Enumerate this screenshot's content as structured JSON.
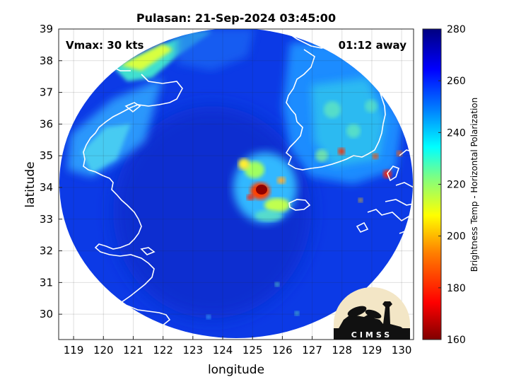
{
  "chart_data": {
    "type": "heatmap",
    "title": "Pulasan: 21-Sep-2024 03:45:00",
    "xlabel": "longitude",
    "ylabel": "latitude",
    "xlim": [
      118.5,
      130.4
    ],
    "ylim": [
      29.2,
      39.0
    ],
    "x_ticks": [
      119,
      120,
      121,
      122,
      123,
      124,
      125,
      126,
      127,
      128,
      129,
      130
    ],
    "y_ticks": [
      30,
      31,
      32,
      33,
      34,
      35,
      36,
      37,
      38,
      39
    ],
    "grid": true,
    "annotations": {
      "vmax": "Vmax: 30 kts",
      "time_away": "01:12 away"
    },
    "colorbar": {
      "label": "Brightness Temp - Horizontal Polarization",
      "ticks": [
        160,
        180,
        200,
        220,
        240,
        260,
        280
      ],
      "range": [
        160,
        280
      ],
      "colors": [
        "#800000",
        "#ff0000",
        "#ff8000",
        "#ffff00",
        "#80ff80",
        "#00ffff",
        "#0080ff",
        "#0000ff",
        "#000080"
      ]
    },
    "swath": {
      "center_lon": 124.35,
      "center_lat": 34.2,
      "background_value": 262
    },
    "features": [
      {
        "name": "storm-core",
        "lon": 125.3,
        "lat": 33.8,
        "value": 168
      },
      {
        "name": "convective-ring",
        "lon": 125.3,
        "lat": 33.9,
        "value": 215
      },
      {
        "name": "yellow-sea-coast",
        "lon": 120.5,
        "lat": 35.0,
        "value": 232
      },
      {
        "name": "northwest-edge",
        "lon": 121.3,
        "lat": 38.2,
        "value": 205
      },
      {
        "name": "korea-land",
        "lon": 127.8,
        "lat": 35.8,
        "value": 238
      },
      {
        "name": "japan-spots",
        "lon": 129.0,
        "lat": 34.8,
        "value": 215
      }
    ]
  },
  "logo": {
    "text": "CIMSS"
  }
}
